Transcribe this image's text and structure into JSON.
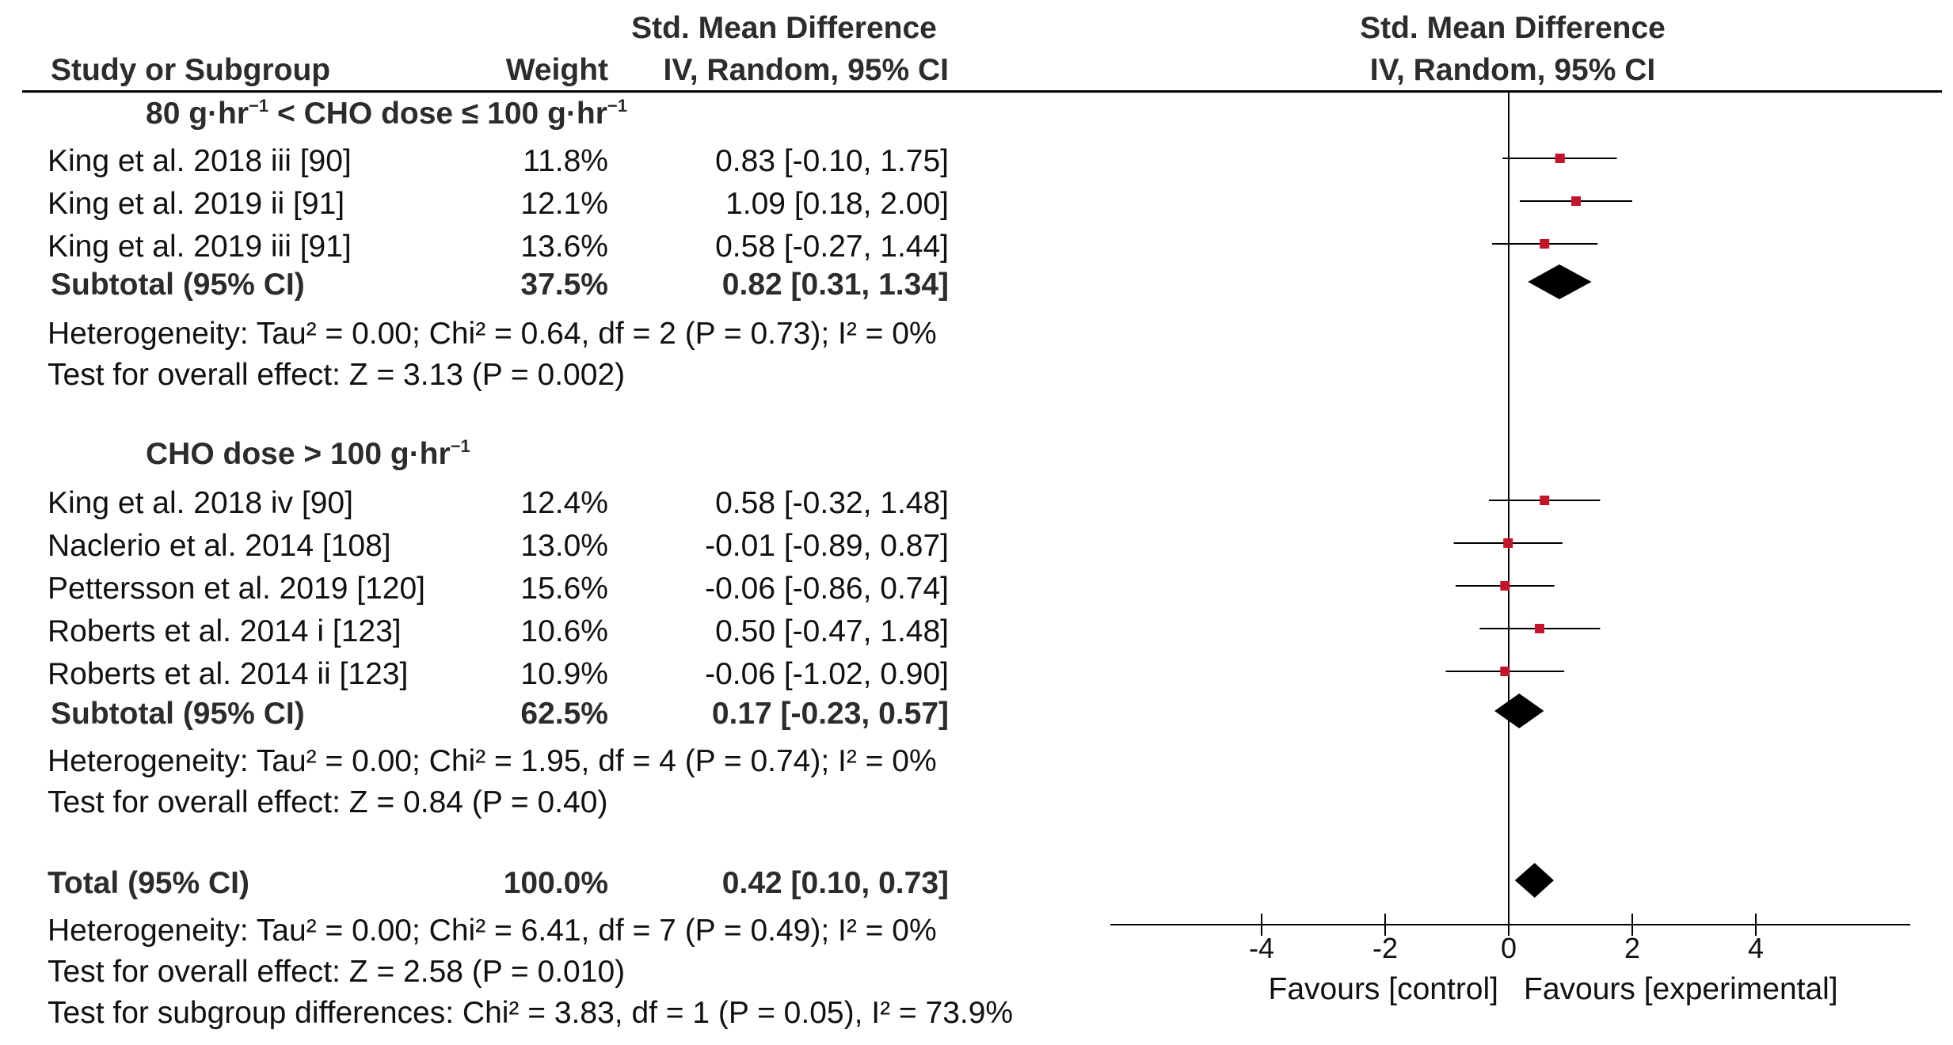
{
  "header": {
    "smd_title": "Std. Mean Difference",
    "study_col": "Study or Subgroup",
    "weight_col": "Weight",
    "ci_col": "IV, Random, 95% CI",
    "plot_title": "Std. Mean Difference",
    "plot_subtitle": "IV, Random, 95% CI"
  },
  "subgroup1": {
    "label_a": "80 g·hr",
    "label_b": "−1",
    "label_c": " < CHO dose ≤ 100 g·hr",
    "label_d": "−1",
    "studies": [
      {
        "name": "King et al. 2018 iii [90]",
        "weight": "11.8%",
        "ci": "0.83 [-0.10, 1.75]"
      },
      {
        "name": "King et al. 2019 ii [91]",
        "weight": "12.1%",
        "ci": "1.09 [0.18, 2.00]"
      },
      {
        "name": "King et al. 2019 iii [91]",
        "weight": "13.6%",
        "ci": "0.58 [-0.27, 1.44]"
      }
    ],
    "subtotal": {
      "label": "Subtotal (95% CI)",
      "weight": "37.5%",
      "ci": "0.82 [0.31, 1.34]"
    },
    "heterogeneity": "Heterogeneity: Tau² = 0.00; Chi² = 0.64, df = 2 (P = 0.73); I² = 0%",
    "overall": "Test for overall effect: Z = 3.13 (P = 0.002)"
  },
  "subgroup2": {
    "label_a": "CHO dose > 100 g·hr",
    "label_b": "−1",
    "studies": [
      {
        "name": "King et al. 2018 iv [90]",
        "weight": "12.4%",
        "ci": "0.58 [-0.32, 1.48]"
      },
      {
        "name": "Naclerio et al. 2014 [108]",
        "weight": "13.0%",
        "ci": "-0.01 [-0.89, 0.87]"
      },
      {
        "name": "Pettersson et al. 2019 [120]",
        "weight": "15.6%",
        "ci": "-0.06 [-0.86, 0.74]"
      },
      {
        "name": "Roberts et al. 2014 i [123]",
        "weight": "10.6%",
        "ci": "0.50 [-0.47, 1.48]"
      },
      {
        "name": "Roberts et al. 2014 ii [123]",
        "weight": "10.9%",
        "ci": "-0.06 [-1.02, 0.90]"
      }
    ],
    "subtotal": {
      "label": "Subtotal (95% CI)",
      "weight": "62.5%",
      "ci": "0.17 [-0.23, 0.57]"
    },
    "heterogeneity": "Heterogeneity: Tau² = 0.00; Chi² = 1.95, df = 4 (P = 0.74); I² = 0%",
    "overall": "Test for overall effect: Z = 0.84 (P = 0.40)"
  },
  "total": {
    "label": "Total (95% CI)",
    "weight": "100.0%",
    "ci": "0.42 [0.10, 0.73]",
    "heterogeneity": "Heterogeneity: Tau² = 0.00; Chi² = 6.41, df = 7 (P = 0.49); I² = 0%",
    "overall": "Test for overall effect: Z = 2.58 (P = 0.010)",
    "subgroup_diff": "Test for subgroup differences: Chi² = 3.83, df = 1 (P = 0.05), I² = 73.9%"
  },
  "axis": {
    "favours_control": "Favours [control]",
    "favours_experimental": "Favours [experimental]"
  },
  "colors": {
    "marker": "#c0152a",
    "line": "#000000",
    "diamond": "#000000"
  },
  "chart_data": {
    "type": "forest",
    "xlim": [
      -4,
      4
    ],
    "ticks": [
      -4,
      -2,
      0,
      2,
      4
    ],
    "tick_labels": [
      "-4",
      "-2",
      "0",
      "2",
      "4"
    ],
    "studies": [
      {
        "name": "King et al. 2018 iii [90]",
        "est": 0.83,
        "lo": -0.1,
        "hi": 1.75,
        "weight": 11.8
      },
      {
        "name": "King et al. 2019 ii [91]",
        "est": 1.09,
        "lo": 0.18,
        "hi": 2.0,
        "weight": 12.1
      },
      {
        "name": "King et al. 2019 iii [91]",
        "est": 0.58,
        "lo": -0.27,
        "hi": 1.44,
        "weight": 13.6
      },
      {
        "name": "King et al. 2018 iv [90]",
        "est": 0.58,
        "lo": -0.32,
        "hi": 1.48,
        "weight": 12.4
      },
      {
        "name": "Naclerio et al. 2014 [108]",
        "est": -0.01,
        "lo": -0.89,
        "hi": 0.87,
        "weight": 13.0
      },
      {
        "name": "Pettersson et al. 2019 [120]",
        "est": -0.06,
        "lo": -0.86,
        "hi": 0.74,
        "weight": 15.6
      },
      {
        "name": "Roberts et al. 2014 i [123]",
        "est": 0.5,
        "lo": -0.47,
        "hi": 1.48,
        "weight": 10.6
      },
      {
        "name": "Roberts et al. 2014 ii [123]",
        "est": -0.06,
        "lo": -1.02,
        "hi": 0.9,
        "weight": 10.9
      }
    ],
    "pooled": [
      {
        "name": "Subtotal 80-100",
        "est": 0.82,
        "lo": 0.31,
        "hi": 1.34
      },
      {
        "name": "Subtotal >100",
        "est": 0.17,
        "lo": -0.23,
        "hi": 0.57
      },
      {
        "name": "Total",
        "est": 0.42,
        "lo": 0.1,
        "hi": 0.73
      }
    ]
  }
}
